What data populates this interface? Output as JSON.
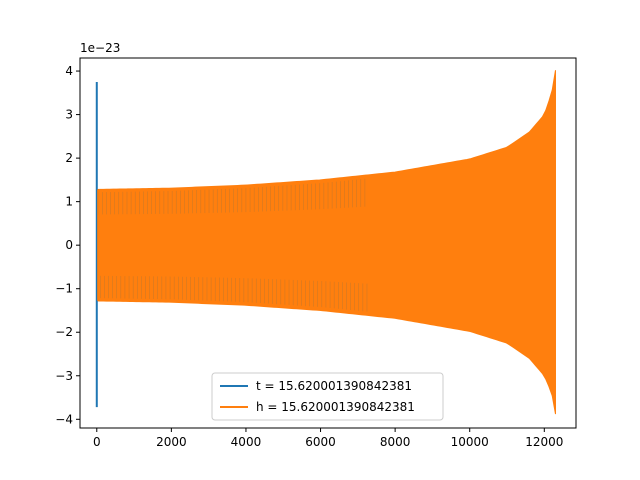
{
  "chart_data": {
    "type": "line",
    "offset_text": "1e−23",
    "xlim": [
      -450,
      12850
    ],
    "ylim": [
      -4.2,
      4.3
    ],
    "x_ticks": [
      0,
      2000,
      4000,
      6000,
      8000,
      10000,
      12000
    ],
    "x_tick_labels": [
      "0",
      "2000",
      "4000",
      "6000",
      "8000",
      "10000",
      "12000"
    ],
    "y_ticks": [
      4,
      3,
      2,
      1,
      0,
      -1,
      -2,
      -3,
      -4
    ],
    "y_tick_labels": [
      "4",
      "3",
      "2",
      "1",
      "0",
      "−1",
      "−2",
      "−3",
      "−4"
    ],
    "legend_position": "lower center",
    "series": [
      {
        "name": "t = 15.620001390842381",
        "color": "#1f77b4",
        "x": [
          0,
          0,
          0
        ],
        "y": [
          0,
          3.75,
          -3.72
        ]
      },
      {
        "name": "h = 15.620001390842381",
        "color": "#ff7f0e",
        "x_start": 0,
        "x_end": 12300,
        "envelope": {
          "x": [
            0,
            2000,
            4000,
            6000,
            8000,
            10000,
            11000,
            11600,
            12000,
            12200,
            12300
          ],
          "upper": [
            1.28,
            1.31,
            1.38,
            1.5,
            1.68,
            1.98,
            2.25,
            2.6,
            3.0,
            3.5,
            4.02
          ],
          "lower": [
            -1.28,
            -1.31,
            -1.38,
            -1.5,
            -1.68,
            -1.98,
            -2.25,
            -2.6,
            -3.0,
            -3.4,
            -3.88
          ]
        }
      }
    ]
  }
}
